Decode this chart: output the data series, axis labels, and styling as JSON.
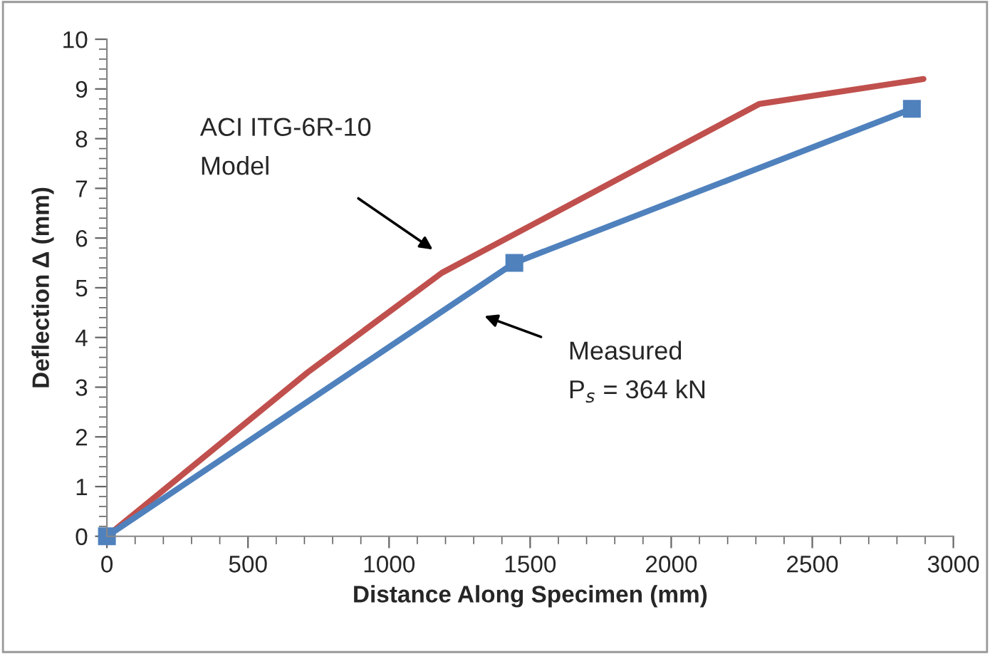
{
  "chart_data": {
    "type": "line",
    "xlabel": "Distance Along Specimen (mm)",
    "ylabel": "Deflection Δ (mm)",
    "series": [
      {
        "color": "#c0504d",
        "x": [
          0,
          712,
          1187,
          2313,
          2894
        ],
        "values": [
          0,
          3.3,
          5.3,
          8.7,
          9.2
        ],
        "marker": "none"
      },
      {
        "color": "#4f81bd",
        "x": [
          0,
          1444,
          2853
        ],
        "values": [
          0,
          5.5,
          8.6
        ],
        "marker": "square"
      }
    ],
    "xlim": [
      0,
      3000
    ],
    "xticks": [
      0,
      500,
      1000,
      1500,
      2000,
      2500,
      3000
    ],
    "ylim": [
      0,
      10
    ],
    "yticks": [
      0,
      1,
      2,
      3,
      4,
      5,
      6,
      7,
      8,
      9,
      10
    ],
    "grid": false,
    "legend": false,
    "annotations": [
      "ACI ITG-6R-10\nModel",
      "Measured\nP$_{s}$ = 364 kN"
    ]
  }
}
